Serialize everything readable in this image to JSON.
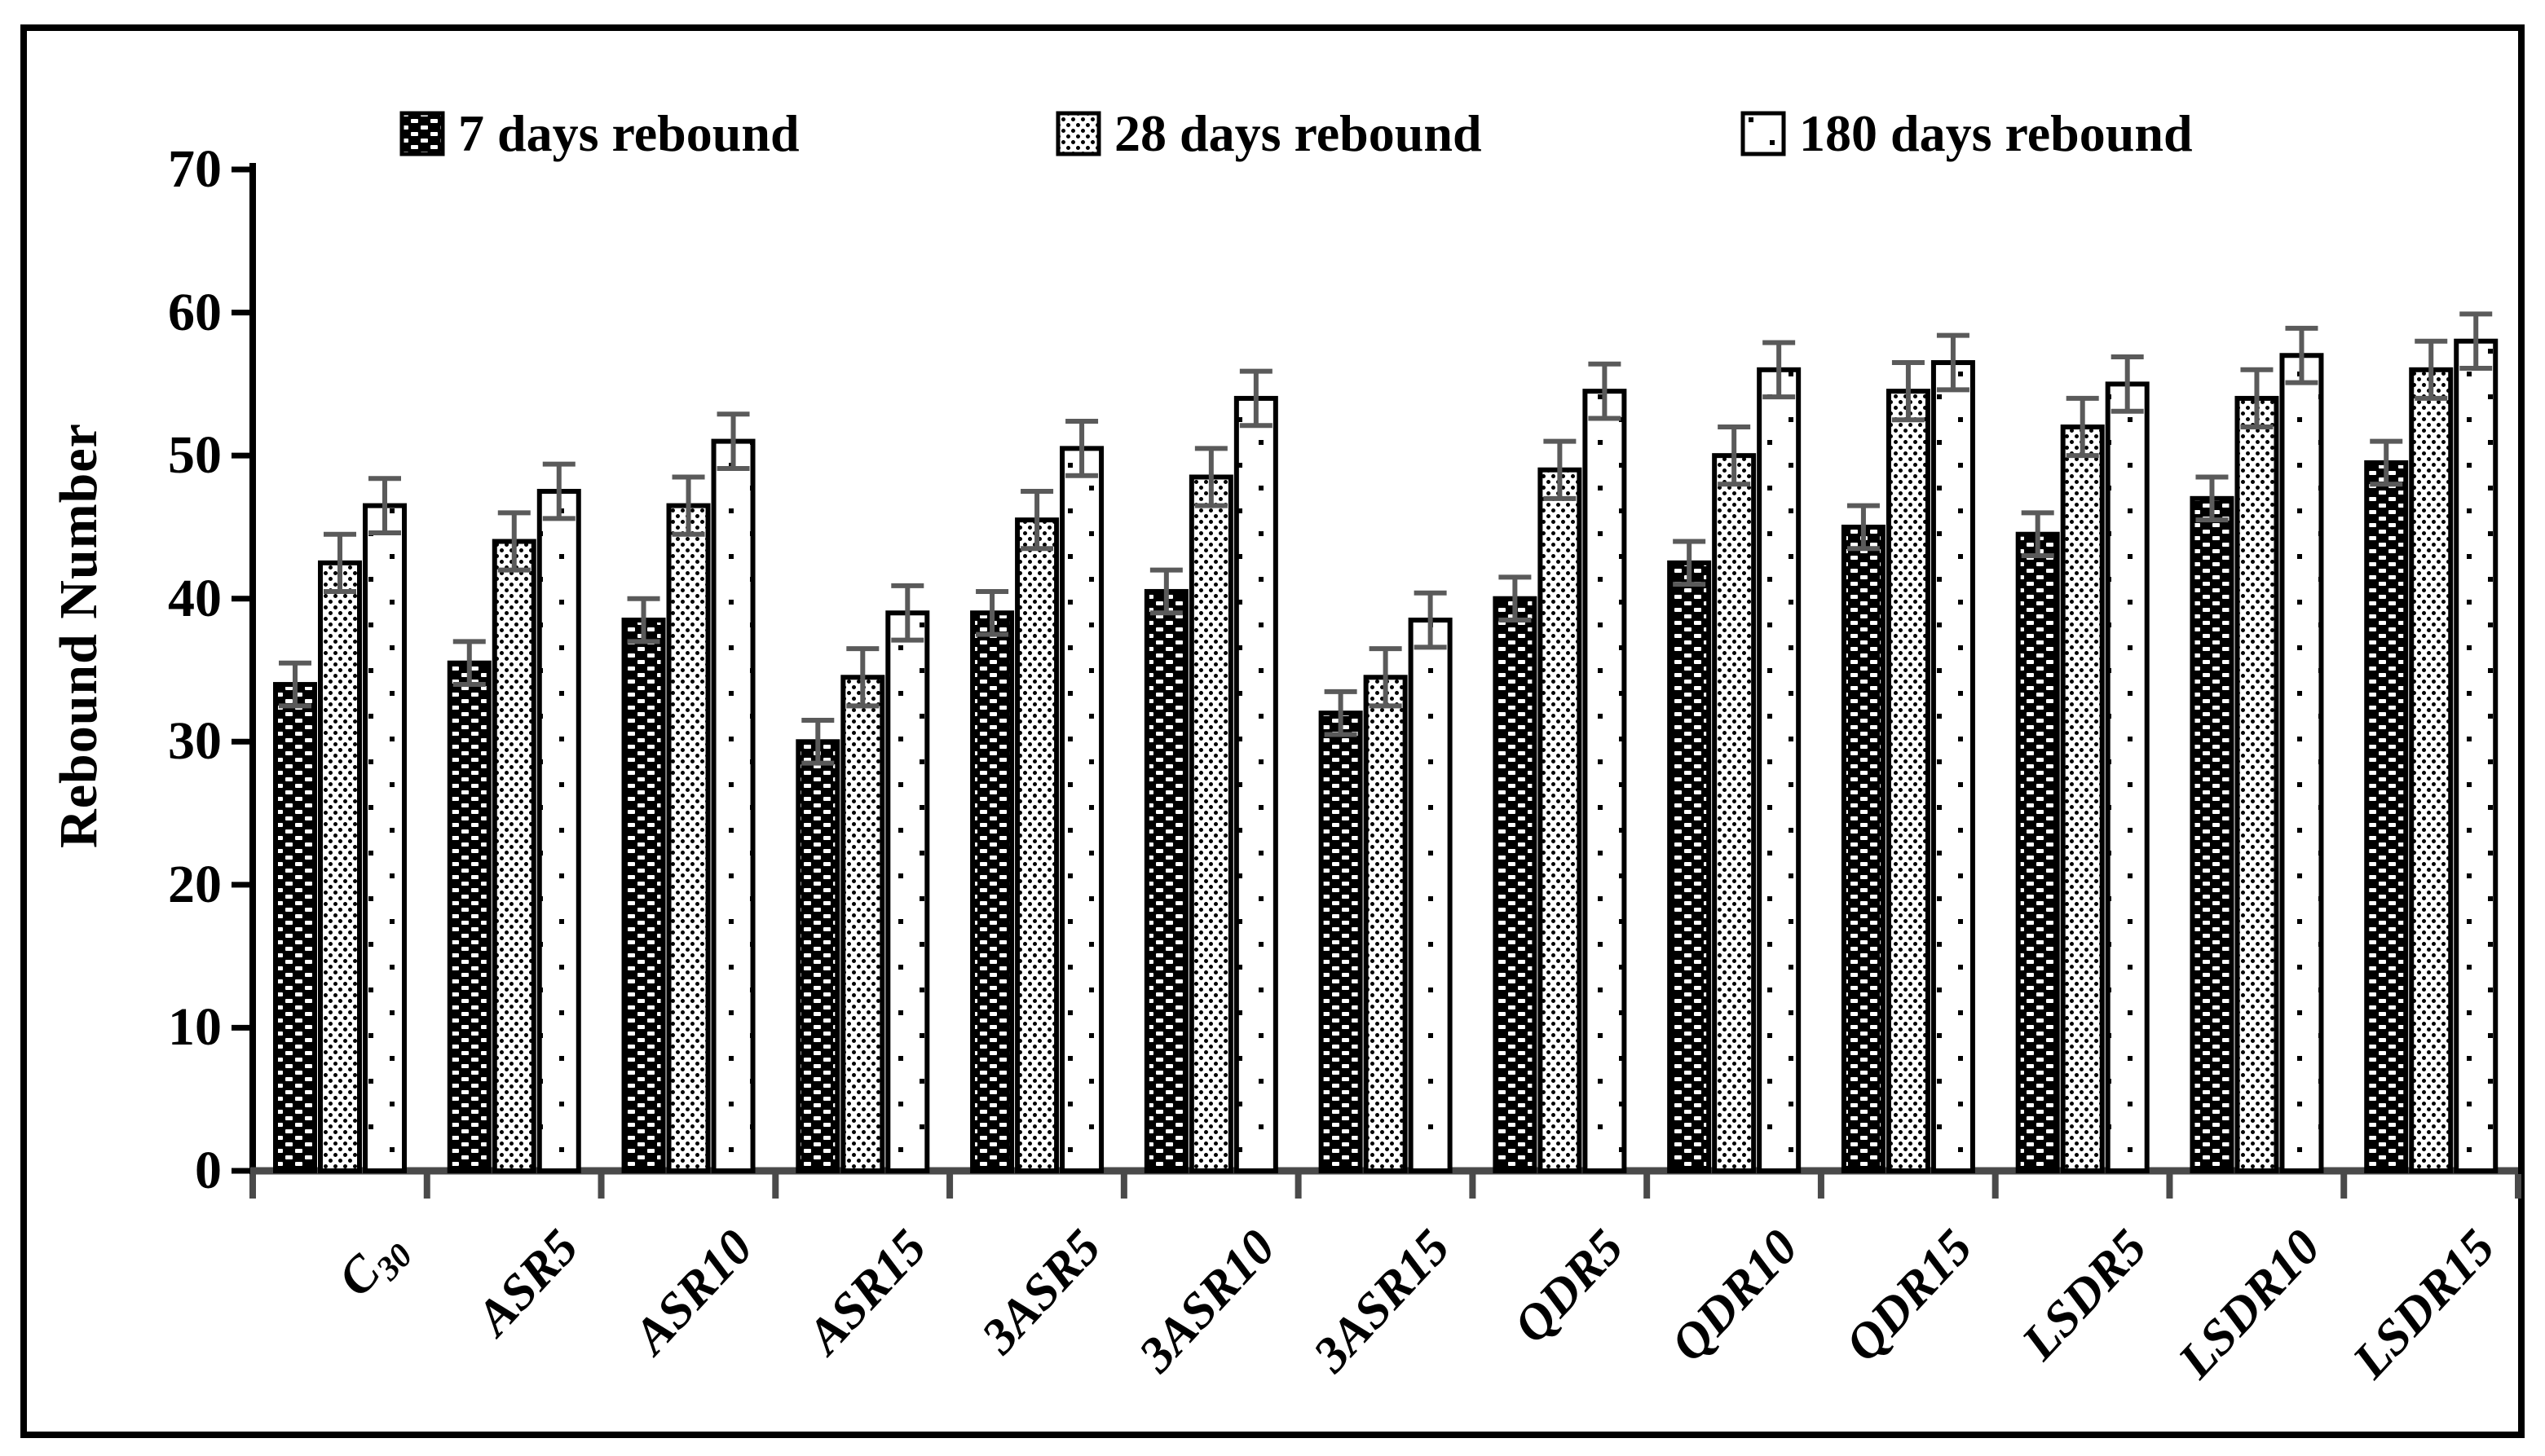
{
  "figure": {
    "background": "#ffffff",
    "border_color": "#000000"
  },
  "chart_data": {
    "type": "bar",
    "title": "",
    "xlabel": "",
    "ylabel": "Rebound Number",
    "ylim": [
      0,
      70
    ],
    "yticks": [
      0,
      10,
      20,
      30,
      40,
      50,
      60,
      70
    ],
    "grid": false,
    "legend_position": "top",
    "categories": [
      {
        "label": "C",
        "sub": "30"
      },
      {
        "label": "ASR5",
        "sub": ""
      },
      {
        "label": "ASR10",
        "sub": ""
      },
      {
        "label": "ASR15",
        "sub": ""
      },
      {
        "label": "3ASR5",
        "sub": ""
      },
      {
        "label": "3ASR10",
        "sub": ""
      },
      {
        "label": "3ASR15",
        "sub": ""
      },
      {
        "label": "QDR5",
        "sub": ""
      },
      {
        "label": "QDR10",
        "sub": ""
      },
      {
        "label": "QDR15",
        "sub": ""
      },
      {
        "label": "LSDR5",
        "sub": ""
      },
      {
        "label": "LSDR10",
        "sub": ""
      },
      {
        "label": "LSDR15",
        "sub": ""
      }
    ],
    "series": [
      {
        "name": "7 days rebound",
        "pattern": "white-dashes-on-black",
        "error": 1.5,
        "values": [
          34,
          35.5,
          38.5,
          30,
          39,
          40.5,
          32,
          40,
          42.5,
          45,
          44.5,
          47,
          49.5
        ]
      },
      {
        "name": "28 days rebound",
        "pattern": "dense-black-dots-on-white",
        "error": 2.0,
        "values": [
          42.5,
          44,
          46.5,
          34.5,
          45.5,
          48.5,
          34.5,
          49,
          50,
          54.5,
          52,
          54,
          56
        ]
      },
      {
        "name": "180 days rebound",
        "pattern": "sparse-black-dots-on-white",
        "error": 1.9,
        "values": [
          46.5,
          47.5,
          51,
          39,
          50.5,
          54,
          38.5,
          54.5,
          56,
          56.5,
          55,
          57,
          58
        ]
      }
    ],
    "colors": {
      "bar_outline": "#000000",
      "bar_fill_dark": "#000000",
      "bar_fill_light": "#ffffff",
      "error_bar": "#5a5a5a",
      "axis": "#000000",
      "baseline": "#4a4a4a"
    }
  }
}
